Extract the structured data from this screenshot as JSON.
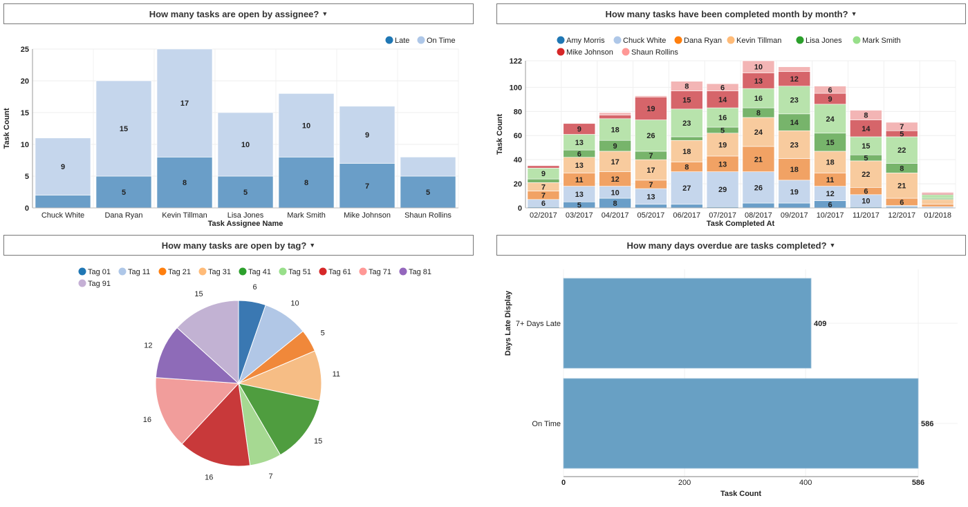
{
  "palette": {
    "legend": [
      "#1f77b4",
      "#aec7e8",
      "#ff7f0e",
      "#ffbb78",
      "#2ca02c",
      "#98df8a",
      "#d62728",
      "#ff9896",
      "#9467bd",
      "#c5b0d5"
    ],
    "bar": [
      "#6a9ec8",
      "#c5d6ec",
      "#f1a264",
      "#f8cb9e",
      "#77b46b",
      "#b8e3ac",
      "#d6656a",
      "#f3b5b5"
    ],
    "pie": [
      "#3a78b2",
      "#b1c7e6",
      "#f0883a",
      "#f6bd85",
      "#4f9d3f",
      "#a6d992",
      "#c8393a",
      "#f19d9b",
      "#8e6bb8",
      "#c2b2d3"
    ],
    "single_bar": "#68a0c4"
  },
  "chart_data": [
    {
      "type": "bar",
      "stacked": true,
      "title": "How many tasks are open by assignee?",
      "xlabel": "Task Assignee Name",
      "ylabel": "Task Count",
      "ylim": [
        0,
        25
      ],
      "yticks": [
        0,
        5,
        10,
        15,
        20,
        25
      ],
      "grid": true,
      "legend": "top-right",
      "categories": [
        "Chuck White",
        "Dana Ryan",
        "Kevin Tillman",
        "Lisa Jones",
        "Mark Smith",
        "Mike Johnson",
        "Shaun Rollins"
      ],
      "series": [
        {
          "name": "Late",
          "values": [
            2,
            5,
            8,
            5,
            8,
            7,
            5
          ]
        },
        {
          "name": "On Time",
          "values": [
            9,
            15,
            17,
            10,
            10,
            9,
            3
          ]
        }
      ]
    },
    {
      "type": "bar",
      "stacked": true,
      "title": "How many tasks have been completed month by month?",
      "xlabel": "Task Completed At",
      "ylabel": "Task Count",
      "ylim": [
        0,
        122
      ],
      "yticks": [
        0,
        20,
        40,
        60,
        80,
        100,
        122
      ],
      "grid": true,
      "legend": "top",
      "categories": [
        "02/2017",
        "03/2017",
        "04/2017",
        "05/2017",
        "06/2017",
        "07/2017",
        "08/2017",
        "09/2017",
        "10/2017",
        "11/2017",
        "12/2017",
        "01/2018"
      ],
      "series": [
        {
          "name": "Amy Morris",
          "values": [
            1,
            5,
            8,
            3,
            3,
            1,
            4,
            4,
            6,
            1,
            1,
            0
          ]
        },
        {
          "name": "Chuck White",
          "values": [
            6,
            13,
            10,
            13,
            27,
            29,
            26,
            19,
            12,
            10,
            1,
            1
          ]
        },
        {
          "name": "Dana Ryan",
          "values": [
            7,
            11,
            12,
            7,
            8,
            13,
            21,
            18,
            11,
            6,
            6,
            2
          ]
        },
        {
          "name": "Kevin Tillman",
          "values": [
            7,
            13,
            17,
            17,
            18,
            19,
            24,
            23,
            18,
            22,
            21,
            4
          ]
        },
        {
          "name": "Lisa Jones",
          "values": [
            3,
            6,
            9,
            7,
            3,
            5,
            8,
            14,
            15,
            5,
            8,
            1
          ]
        },
        {
          "name": "Mark Smith",
          "values": [
            9,
            13,
            18,
            26,
            23,
            16,
            16,
            23,
            24,
            15,
            22,
            3
          ]
        },
        {
          "name": "Mike Johnson",
          "values": [
            2,
            9,
            3,
            19,
            15,
            14,
            13,
            12,
            9,
            14,
            5,
            1
          ]
        },
        {
          "name": "Shaun Rollins",
          "values": [
            0,
            0,
            2,
            1,
            8,
            6,
            10,
            4,
            6,
            8,
            7,
            1
          ]
        }
      ]
    },
    {
      "type": "pie",
      "title": "How many tasks are open by tag?",
      "legend": "top",
      "categories": [
        "Tag 01",
        "Tag 11",
        "Tag 21",
        "Tag 31",
        "Tag 41",
        "Tag 51",
        "Tag 61",
        "Tag 71",
        "Tag 81",
        "Tag 91"
      ],
      "values": [
        6,
        10,
        5,
        11,
        15,
        7,
        16,
        16,
        12,
        15
      ]
    },
    {
      "type": "bar",
      "orientation": "horizontal",
      "title": "How many days overdue are tasks completed?",
      "xlabel": "Task Count",
      "ylabel": "Days Late Display",
      "xlim": [
        0,
        586
      ],
      "xticks": [
        0,
        200,
        400,
        586
      ],
      "grid": true,
      "categories": [
        "7+ Days Late",
        "On Time"
      ],
      "values": [
        409,
        586
      ]
    }
  ]
}
